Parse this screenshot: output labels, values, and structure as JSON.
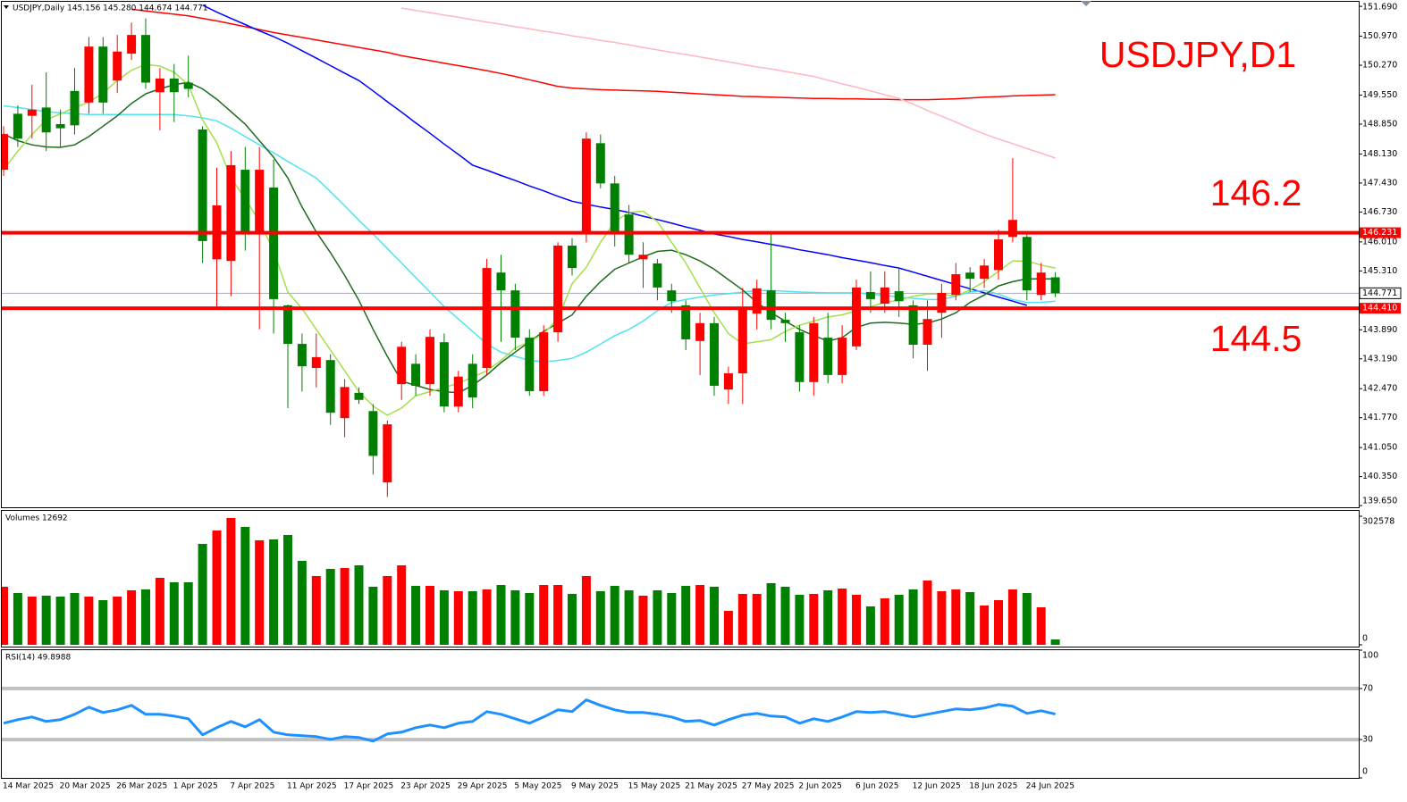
{
  "header": "USDJPY,Daily 145.156 145.280 144.674 144.771",
  "chart_data": [
    {
      "type": "candlestick",
      "title": "USDJPY,D1",
      "categories": [
        "14 Mar 2025",
        null,
        null,
        null,
        "20 Mar 2025",
        null,
        null,
        null,
        "26 Mar 2025",
        null,
        null,
        null,
        "1 Apr 2025",
        null,
        null,
        null,
        "7 Apr 2025",
        null,
        null,
        null,
        "11 Apr 2025",
        null,
        null,
        null,
        "17 Apr 2025",
        null,
        null,
        null,
        "23 Apr 2025",
        null,
        null,
        null,
        "29 Apr 2025",
        null,
        null,
        null,
        "5 May 2025",
        null,
        null,
        null,
        "9 May 2025",
        null,
        null,
        null,
        "15 May 2025",
        null,
        null,
        null,
        "21 May 2025",
        null,
        null,
        null,
        "27 May 2025",
        null,
        null,
        null,
        "2 Jun 2025",
        null,
        null,
        null,
        "6 Jun 2025",
        null,
        null,
        null,
        "12 Jun 2025",
        null,
        null,
        null,
        "18 Jun 2025",
        null,
        null,
        null,
        "24 Jun 2025",
        null,
        null
      ],
      "open": [
        147.75,
        149.1,
        149.05,
        149.25,
        148.85,
        149.65,
        149.37,
        150.72,
        149.9,
        150.55,
        151.0,
        149.62,
        149.95,
        149.85,
        148.72,
        145.59,
        145.55,
        147.75,
        146.24,
        147.32,
        144.48,
        143.55,
        142.97,
        143.16,
        141.76,
        142.37,
        141.93,
        140.21,
        142.58,
        143.07,
        142.58,
        143.59,
        142.04,
        143.07,
        142.97,
        145.27,
        144.84,
        143.7,
        142.41,
        143.83,
        145.92,
        146.24,
        148.39,
        147.42,
        146.67,
        145.59,
        145.49,
        144.84,
        144.48,
        143.62,
        144.05,
        142.45,
        142.84,
        144.28,
        144.84,
        144.13,
        143.83,
        142.63,
        143.7,
        142.8,
        143.49,
        144.8,
        144.52,
        144.82,
        144.48,
        143.53,
        144.3,
        144.73,
        145.27,
        145.12,
        145.33,
        146.13,
        146.13,
        144.73,
        145.156
      ],
      "high": [
        148.8,
        149.3,
        149.8,
        150.1,
        149.2,
        150.2,
        150.95,
        150.95,
        151.0,
        151.3,
        151.4,
        150.2,
        150.3,
        150.5,
        148.8,
        147.8,
        148.2,
        148.3,
        148.3,
        148.0,
        144.5,
        143.8,
        143.8,
        143.3,
        142.7,
        142.5,
        142.1,
        141.7,
        143.6,
        143.3,
        143.9,
        143.8,
        142.9,
        143.3,
        145.6,
        145.7,
        145.0,
        143.9,
        144.0,
        146.0,
        146.1,
        148.65,
        148.6,
        147.6,
        146.9,
        146.0,
        145.6,
        145.0,
        144.6,
        144.3,
        144.2,
        143.0,
        144.9,
        145.1,
        146.2,
        144.3,
        144.0,
        144.2,
        144.3,
        144.0,
        145.1,
        145.3,
        145.3,
        145.4,
        144.6,
        144.6,
        145.0,
        145.5,
        145.4,
        145.6,
        146.3,
        148.03,
        146.2,
        145.5,
        145.28
      ],
      "low": [
        147.6,
        148.3,
        148.5,
        148.2,
        148.3,
        148.6,
        149.1,
        149.1,
        149.6,
        150.4,
        149.7,
        148.7,
        148.9,
        149.5,
        145.5,
        144.4,
        144.7,
        145.8,
        143.9,
        143.8,
        142.0,
        142.4,
        142.5,
        141.6,
        141.3,
        142.1,
        140.4,
        139.86,
        142.2,
        142.3,
        142.3,
        141.9,
        141.9,
        142.0,
        142.8,
        143.6,
        143.4,
        142.3,
        142.3,
        143.6,
        145.2,
        146.0,
        147.3,
        145.9,
        145.5,
        144.9,
        144.6,
        144.3,
        143.4,
        142.8,
        142.3,
        142.1,
        142.1,
        143.9,
        143.9,
        143.6,
        142.4,
        142.3,
        142.6,
        142.6,
        143.4,
        144.3,
        144.3,
        144.2,
        143.2,
        142.9,
        143.7,
        144.6,
        144.8,
        144.9,
        145.1,
        146.0,
        144.6,
        144.6,
        144.674
      ],
      "close": [
        148.61,
        148.5,
        149.2,
        148.65,
        148.75,
        148.82,
        150.72,
        149.37,
        150.6,
        151.0,
        149.85,
        149.95,
        149.62,
        149.7,
        146.03,
        146.89,
        147.86,
        146.24,
        147.75,
        144.63,
        143.55,
        143.01,
        143.23,
        141.89,
        142.51,
        142.2,
        140.85,
        141.61,
        143.48,
        142.54,
        143.72,
        142.04,
        142.76,
        142.26,
        145.38,
        144.84,
        143.7,
        142.41,
        143.83,
        145.92,
        145.38,
        148.5,
        147.42,
        146.24,
        145.7,
        145.7,
        144.91,
        144.58,
        143.66,
        144.05,
        142.54,
        142.84,
        144.41,
        144.89,
        144.13,
        144.05,
        142.63,
        144.05,
        142.8,
        143.7,
        144.91,
        144.63,
        144.91,
        144.58,
        143.53,
        144.15,
        144.78,
        145.23,
        145.12,
        145.44,
        146.07,
        146.54,
        144.84,
        145.27,
        144.771
      ],
      "up_color": "#ff0000",
      "down_color": "#008000",
      "ylim": [
        139.61,
        151.8
      ],
      "yticks": [
        {
          "value": 151.69,
          "label": "151.690"
        },
        {
          "value": 150.97,
          "label": "150.970"
        },
        {
          "value": 150.27,
          "label": "150.270"
        },
        {
          "value": 149.55,
          "label": "149.550"
        },
        {
          "value": 148.85,
          "label": "148.850"
        },
        {
          "value": 148.13,
          "label": "148.130"
        },
        {
          "value": 147.43,
          "label": "147.430"
        },
        {
          "value": 146.73,
          "label": "146.730"
        },
        {
          "value": 146.01,
          "label": "146.010"
        },
        {
          "value": 145.31,
          "label": "145.310"
        },
        {
          "value": 143.89,
          "label": "143.890"
        },
        {
          "value": 143.19,
          "label": "143.190"
        },
        {
          "value": 142.47,
          "label": "142.470"
        },
        {
          "value": 141.77,
          "label": "141.770"
        },
        {
          "value": 141.05,
          "label": "141.050"
        },
        {
          "value": 140.35,
          "label": "140.350"
        },
        {
          "value": 139.65,
          "label": "139.650"
        }
      ],
      "series": [
        {
          "color": "#ff0000",
          "values": [
            null,
            null,
            null,
            null,
            null,
            null,
            null,
            null,
            null,
            151.62,
            151.58,
            151.54,
            151.5,
            151.46,
            151.4,
            151.34,
            151.27,
            151.2,
            151.13,
            151.06,
            151.0,
            150.94,
            150.88,
            150.82,
            150.76,
            150.7,
            150.64,
            150.58,
            150.5,
            150.44,
            150.38,
            150.32,
            150.26,
            150.2,
            150.14,
            150.07,
            150.0,
            149.92,
            149.84,
            149.76,
            149.72,
            149.7,
            149.68,
            149.67,
            149.66,
            149.65,
            149.64,
            149.62,
            149.6,
            149.58,
            149.56,
            149.54,
            149.52,
            149.51,
            149.5,
            149.49,
            149.48,
            149.47,
            149.47,
            149.46,
            149.46,
            149.45,
            149.45,
            149.44,
            149.44,
            149.44,
            149.45,
            149.46,
            149.48,
            149.5,
            149.51,
            149.53,
            149.54,
            149.55,
            149.56
          ]
        },
        {
          "color": "#ffb6c1",
          "values": [
            null,
            null,
            null,
            null,
            null,
            null,
            null,
            null,
            null,
            null,
            null,
            null,
            null,
            null,
            null,
            null,
            null,
            null,
            null,
            null,
            null,
            null,
            null,
            null,
            null,
            null,
            null,
            null,
            151.65,
            151.59,
            151.54,
            151.48,
            151.43,
            151.37,
            151.31,
            151.26,
            151.2,
            151.15,
            151.09,
            151.04,
            150.98,
            150.93,
            150.87,
            150.82,
            150.76,
            150.7,
            150.64,
            150.58,
            150.53,
            150.47,
            150.41,
            150.35,
            150.29,
            150.23,
            150.18,
            150.12,
            150.06,
            150.0,
            149.91,
            149.82,
            149.74,
            149.65,
            149.56,
            149.47,
            149.33,
            149.18,
            149.04,
            148.9,
            148.75,
            148.61,
            148.49,
            148.38,
            148.26,
            148.15,
            148.03
          ]
        },
        {
          "color": "#0000ff",
          "values": [
            null,
            null,
            null,
            null,
            null,
            null,
            null,
            null,
            null,
            null,
            null,
            null,
            null,
            null,
            151.72,
            151.55,
            151.4,
            151.25,
            151.1,
            150.96,
            150.8,
            150.62,
            150.44,
            150.26,
            150.08,
            149.9,
            149.65,
            149.39,
            149.14,
            148.88,
            148.63,
            148.37,
            148.12,
            147.86,
            147.74,
            147.61,
            147.49,
            147.36,
            147.24,
            147.11,
            146.99,
            146.92,
            146.85,
            146.79,
            146.72,
            146.63,
            146.55,
            146.46,
            146.37,
            146.29,
            146.2,
            146.14,
            146.07,
            146.01,
            145.95,
            145.89,
            145.82,
            145.76,
            145.7,
            145.63,
            145.57,
            145.51,
            145.44,
            145.38,
            145.28,
            145.18,
            145.08,
            144.98,
            144.88,
            144.78,
            144.68,
            144.58,
            144.48,
            null,
            null
          ]
        },
        {
          "color": "#4fe3f2",
          "values": [
            149.29,
            149.25,
            149.2,
            149.15,
            149.12,
            149.1,
            149.08,
            149.08,
            149.08,
            149.08,
            149.08,
            149.08,
            149.08,
            149.05,
            149.0,
            148.93,
            148.75,
            148.55,
            148.35,
            148.16,
            147.95,
            147.75,
            147.55,
            147.22,
            146.88,
            146.53,
            146.2,
            145.85,
            145.5,
            145.15,
            144.8,
            144.45,
            144.15,
            143.85,
            143.55,
            143.35,
            143.25,
            143.15,
            143.12,
            143.15,
            143.2,
            143.35,
            143.55,
            143.75,
            143.9,
            144.1,
            144.35,
            144.55,
            144.62,
            144.68,
            144.73,
            144.76,
            144.8,
            144.84,
            144.84,
            144.82,
            144.8,
            144.79,
            144.78,
            144.78,
            144.78,
            144.75,
            144.72,
            144.68,
            144.65,
            144.62,
            144.62,
            144.7,
            144.8,
            144.84,
            144.75,
            144.62,
            144.55,
            144.55,
            144.58
          ]
        },
        {
          "color": "#1d6b1d",
          "values": [
            148.61,
            148.45,
            148.35,
            148.3,
            148.29,
            148.35,
            148.55,
            148.8,
            149.05,
            149.35,
            149.58,
            149.7,
            149.8,
            149.86,
            149.7,
            149.45,
            149.15,
            148.85,
            148.45,
            148.05,
            147.55,
            146.85,
            146.25,
            145.75,
            145.2,
            144.6,
            143.9,
            143.25,
            142.65,
            142.55,
            142.45,
            142.4,
            142.37,
            142.55,
            142.8,
            143.1,
            143.35,
            143.6,
            143.85,
            144.05,
            144.25,
            144.7,
            145.05,
            145.35,
            145.5,
            145.65,
            145.78,
            145.81,
            145.7,
            145.55,
            145.35,
            145.1,
            144.85,
            144.55,
            144.3,
            144.1,
            143.9,
            143.75,
            143.62,
            143.7,
            143.95,
            144.05,
            144.07,
            144.05,
            144.02,
            144.05,
            144.15,
            144.3,
            144.55,
            144.73,
            144.95,
            145.05,
            145.12,
            145.12,
            145.12
          ]
        },
        {
          "color": "#a2e04a",
          "values": [
            147.75,
            148.2,
            148.6,
            148.95,
            149.1,
            149.25,
            149.38,
            149.6,
            149.9,
            150.15,
            150.29,
            150.25,
            150.1,
            149.8,
            148.95,
            148.4,
            147.55,
            147.05,
            146.5,
            145.8,
            144.8,
            144.4,
            143.9,
            143.4,
            142.9,
            142.4,
            142.05,
            141.83,
            142.0,
            142.3,
            142.4,
            142.5,
            142.6,
            142.75,
            142.9,
            143.15,
            143.45,
            143.6,
            143.8,
            144.15,
            145.0,
            145.4,
            146.0,
            146.5,
            146.72,
            146.75,
            146.5,
            146.0,
            145.5,
            144.9,
            144.3,
            143.8,
            143.55,
            143.6,
            143.65,
            143.85,
            144.0,
            144.1,
            144.2,
            144.25,
            144.35,
            144.45,
            144.55,
            144.6,
            144.7,
            144.75,
            144.75,
            144.7,
            144.85,
            145.05,
            145.3,
            145.55,
            145.55,
            145.45,
            145.38
          ]
        }
      ],
      "hlines": [
        {
          "value": 146.231,
          "label": "146.231",
          "color": "#ff0000"
        },
        {
          "value": 144.41,
          "label": "144.410",
          "color": "#ff0000"
        }
      ],
      "last_price": 144.771,
      "annotations": [
        "146.2",
        "144.5"
      ]
    },
    {
      "type": "bar",
      "title": "Volumes 12692",
      "values": [
        136581,
        121872,
        113467,
        115568,
        113467,
        121872,
        113467,
        105062,
        113467,
        128176,
        130277,
        157593,
        147087,
        147087,
        237440,
        268959,
        298376,
        277364,
        245845,
        247946,
        258452,
        197517,
        161795,
        178605,
        180707,
        187010,
        136581,
        161795,
        187010,
        138682,
        138682,
        128176,
        126074,
        126074,
        130277,
        140783,
        128176,
        121872,
        140783,
        140783,
        119771,
        161795,
        126074,
        138682,
        128176,
        115568,
        128176,
        121872,
        138682,
        140783,
        136581,
        79847,
        119771,
        119771,
        144986,
        136581,
        117669,
        119771,
        128176,
        132378,
        117669,
        90353,
        109264,
        117669,
        130277,
        151289,
        126074,
        130277,
        123973,
        92455,
        105062,
        130277,
        121872,
        88252,
        12692
      ],
      "ylim": [
        0,
        302578
      ],
      "yticks": [
        0,
        302578
      ]
    },
    {
      "type": "line",
      "title": "RSI(14) 49.8988",
      "color": "#1e90ff",
      "values": [
        42.8,
        45.6,
        47.7,
        44.2,
        45.6,
        49.8,
        55.4,
        51.2,
        53.3,
        56.8,
        49.8,
        49.8,
        48.4,
        46.3,
        33.7,
        39.3,
        44.2,
        40.0,
        45.6,
        35.8,
        33.7,
        33.0,
        32.3,
        30.2,
        32.3,
        31.6,
        28.8,
        34.4,
        35.8,
        39.3,
        41.4,
        39.3,
        42.8,
        44.2,
        51.9,
        49.8,
        46.3,
        42.8,
        47.7,
        53.3,
        51.9,
        61.1,
        56.8,
        53.3,
        51.2,
        51.2,
        49.8,
        47.7,
        44.2,
        44.9,
        41.4,
        45.6,
        49.1,
        50.5,
        48.4,
        47.7,
        42.8,
        46.3,
        44.2,
        47.7,
        51.9,
        51.2,
        51.9,
        49.8,
        47.7,
        49.8,
        51.9,
        54.0,
        53.3,
        54.7,
        57.5,
        56.1,
        50.5,
        52.6,
        49.8988
      ],
      "ylim": [
        0,
        100
      ],
      "yticks": [
        0,
        30,
        70,
        100
      ],
      "grid": true
    }
  ]
}
